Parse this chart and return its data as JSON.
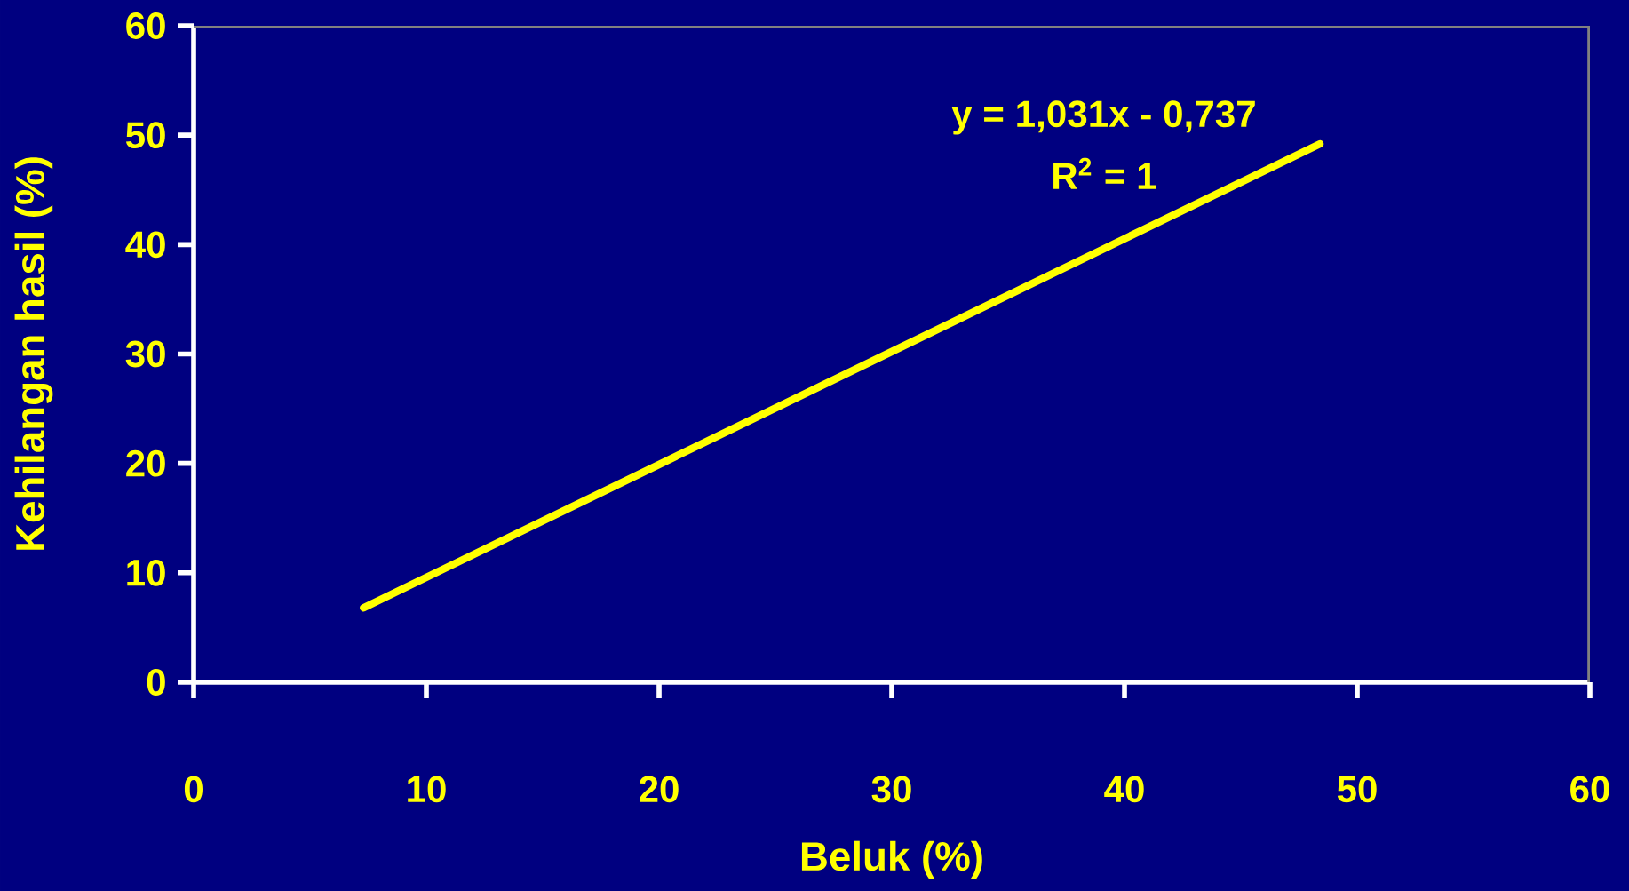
{
  "chart_data": {
    "type": "line",
    "xlabel": "Beluk (%)",
    "ylabel": "Kehilangan hasil (%)",
    "x": [
      7.3,
      48.4
    ],
    "series": [
      {
        "color": "#ffff00",
        "values": [
          6.8,
          49.2
        ]
      }
    ],
    "xlim": [
      0,
      60
    ],
    "ylim": [
      0,
      60
    ],
    "xticks": [
      0,
      10,
      20,
      30,
      40,
      50,
      60
    ],
    "yticks": [
      0,
      10,
      20,
      30,
      40,
      50,
      60
    ],
    "line_style": "solid",
    "annotations": [
      "y = 1,031x - 0,737",
      "R$^{2}$ = 1"
    ]
  }
}
